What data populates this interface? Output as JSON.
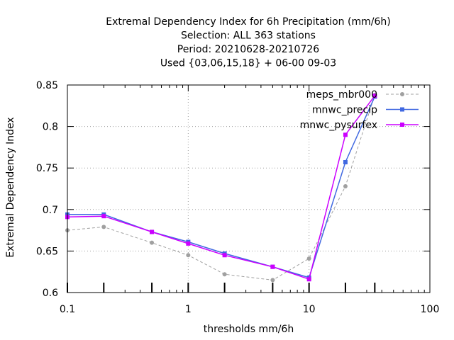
{
  "chart_data": {
    "type": "line",
    "title_lines": [
      "Extremal Dependency Index  for 6h Precipitation (mm/6h)",
      "Selection: ALL    363 stations",
      "Period: 20210628-20210726",
      "Used {03,06,15,18} + 06-00 09-03"
    ],
    "xlabel": "thresholds mm/6h",
    "ylabel": "Extremal Dependency Index",
    "x_scale": "log",
    "xlim": [
      0.1,
      100
    ],
    "ylim": [
      0.6,
      0.85
    ],
    "x_ticks": [
      0.1,
      1,
      10,
      100
    ],
    "x_tick_labels": [
      "0.1",
      "1",
      "10",
      "100"
    ],
    "y_ticks": [
      0.6,
      0.65,
      0.7,
      0.75,
      0.8,
      0.85
    ],
    "y_tick_labels": [
      "0.6",
      "0.65",
      "0.7",
      "0.75",
      "0.8",
      "0.85"
    ],
    "grid": true,
    "legend_position": "top-right",
    "threshold_marks": [
      0.1,
      0.2,
      0.5,
      1,
      2,
      5,
      10,
      20,
      35
    ],
    "x": [
      0.1,
      0.2,
      0.5,
      1,
      2,
      5,
      10,
      20,
      35
    ],
    "series": [
      {
        "name": "meps_mbr000",
        "color": "#a0a0a0",
        "dash": true,
        "marker": "circle",
        "values": [
          0.675,
          0.679,
          0.66,
          0.645,
          0.622,
          0.615,
          0.641,
          0.728,
          0.838
        ]
      },
      {
        "name": "mnwc_precip",
        "color": "#4169e1",
        "dash": false,
        "marker": "square",
        "values": [
          0.694,
          0.694,
          0.673,
          0.661,
          0.647,
          0.631,
          0.618,
          0.757,
          0.836
        ]
      },
      {
        "name": "mnwc_pysurfex",
        "color": "#cc00ff",
        "dash": false,
        "marker": "square",
        "values": [
          0.691,
          0.692,
          0.673,
          0.659,
          0.645,
          0.631,
          0.616,
          0.79,
          0.837
        ]
      }
    ]
  }
}
